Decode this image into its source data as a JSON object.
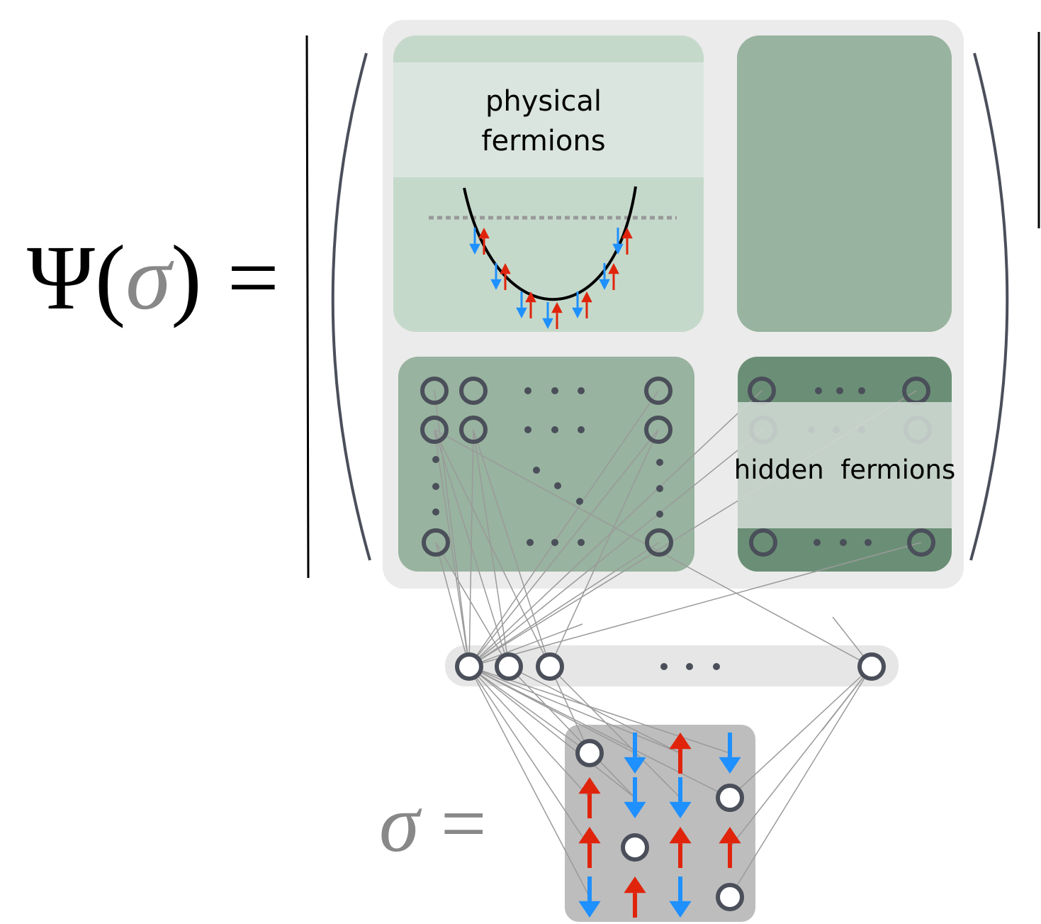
{
  "equation": {
    "psi": "Ψ(",
    "sigma": "σ",
    "close": ")",
    "equals": "="
  },
  "physical": {
    "line1": "physical",
    "line2": "fermions"
  },
  "hidden": "hidden  fermions",
  "input": {
    "sigma": "σ",
    "equals": "="
  }
}
